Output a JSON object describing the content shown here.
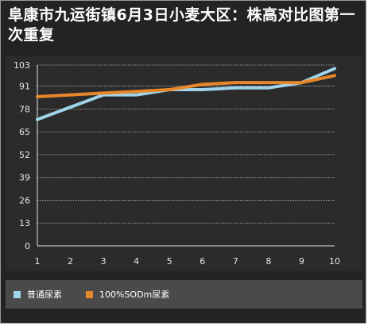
{
  "chart_data": {
    "type": "line",
    "title": "阜康市九运街镇6月3日小麦大区：株高对比图第一次重复",
    "x": [
      "1",
      "2",
      "3",
      "4",
      "5",
      "6",
      "7",
      "8",
      "9",
      "10"
    ],
    "y_ticks": [
      "103",
      "91",
      "78",
      "65",
      "52",
      "39",
      "26",
      "13",
      "0"
    ],
    "ylim": [
      0,
      103
    ],
    "grid": true,
    "legend_position": "bottom",
    "series": [
      {
        "name": "普通尿素",
        "color": "#9fd4ea",
        "values": [
          72,
          79,
          86,
          86,
          89,
          89,
          90,
          90,
          93,
          101
        ]
      },
      {
        "name": "100%SODm尿素",
        "color": "#e8862a",
        "values": [
          85,
          86,
          87,
          88,
          89,
          92,
          93,
          93,
          93,
          97
        ]
      }
    ]
  }
}
